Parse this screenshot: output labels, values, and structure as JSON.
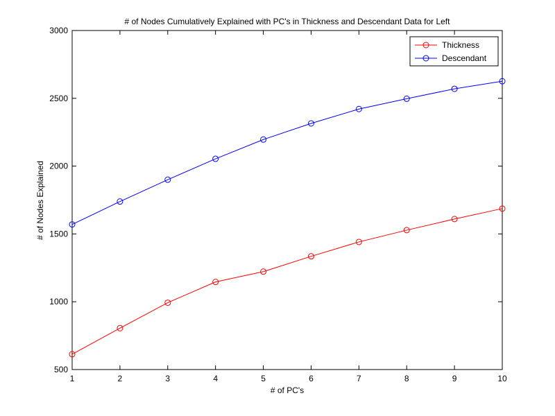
{
  "chart_data": {
    "type": "line",
    "title": "# of Nodes Cumulatively Explained with PC's in Thickness and Descendant Data for Left",
    "xlabel": "# of PC's",
    "ylabel": "# of Nodes Explained",
    "x": [
      1,
      2,
      3,
      4,
      5,
      6,
      7,
      8,
      9,
      10
    ],
    "xlim": [
      1,
      10
    ],
    "ylim": [
      500,
      3000
    ],
    "xticks": [
      1,
      2,
      3,
      4,
      5,
      6,
      7,
      8,
      9,
      10
    ],
    "yticks": [
      500,
      1000,
      1500,
      2000,
      2500,
      3000
    ],
    "grid": false,
    "legend_position": "top-right",
    "series": [
      {
        "name": "Thickness",
        "color": "#ff0000",
        "marker": "circle",
        "values": [
          613,
          805,
          993,
          1146,
          1222,
          1335,
          1441,
          1528,
          1610,
          1687
        ]
      },
      {
        "name": "Descendant",
        "color": "#0000ff",
        "marker": "circle",
        "values": [
          1570,
          1739,
          1900,
          2054,
          2196,
          2315,
          2421,
          2497,
          2570,
          2626
        ]
      }
    ]
  }
}
